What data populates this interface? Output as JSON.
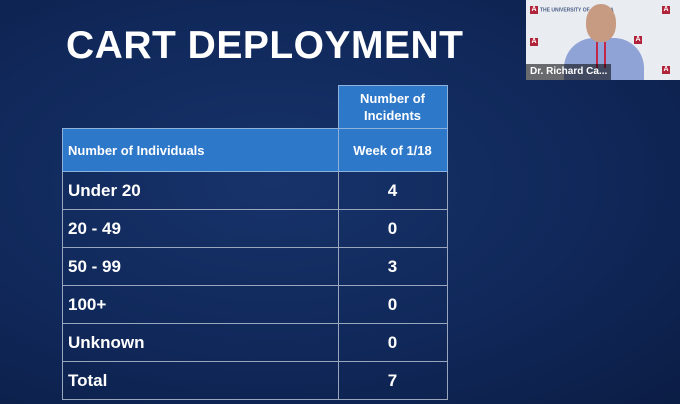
{
  "slide": {
    "title": "CART DEPLOYMENT",
    "table": {
      "top_header": "Number of Incidents",
      "col_headers": [
        "Number of Individuals",
        "Week of 1/18"
      ],
      "rows": [
        {
          "label": "Under 20",
          "value": "4"
        },
        {
          "label": "20 - 49",
          "value": "0"
        },
        {
          "label": "50 - 99",
          "value": "3"
        },
        {
          "label": "100+",
          "value": "0"
        },
        {
          "label": "Unknown",
          "value": "0"
        },
        {
          "label": "Total",
          "value": "7"
        }
      ]
    }
  },
  "video": {
    "speaker_name": "Dr. Richard Ca...",
    "logo_text": "THE UNIVERSITY OF ARIZONA"
  },
  "colors": {
    "background": "#10285a",
    "header_fill": "#2e78c9",
    "text": "#ffffff"
  }
}
